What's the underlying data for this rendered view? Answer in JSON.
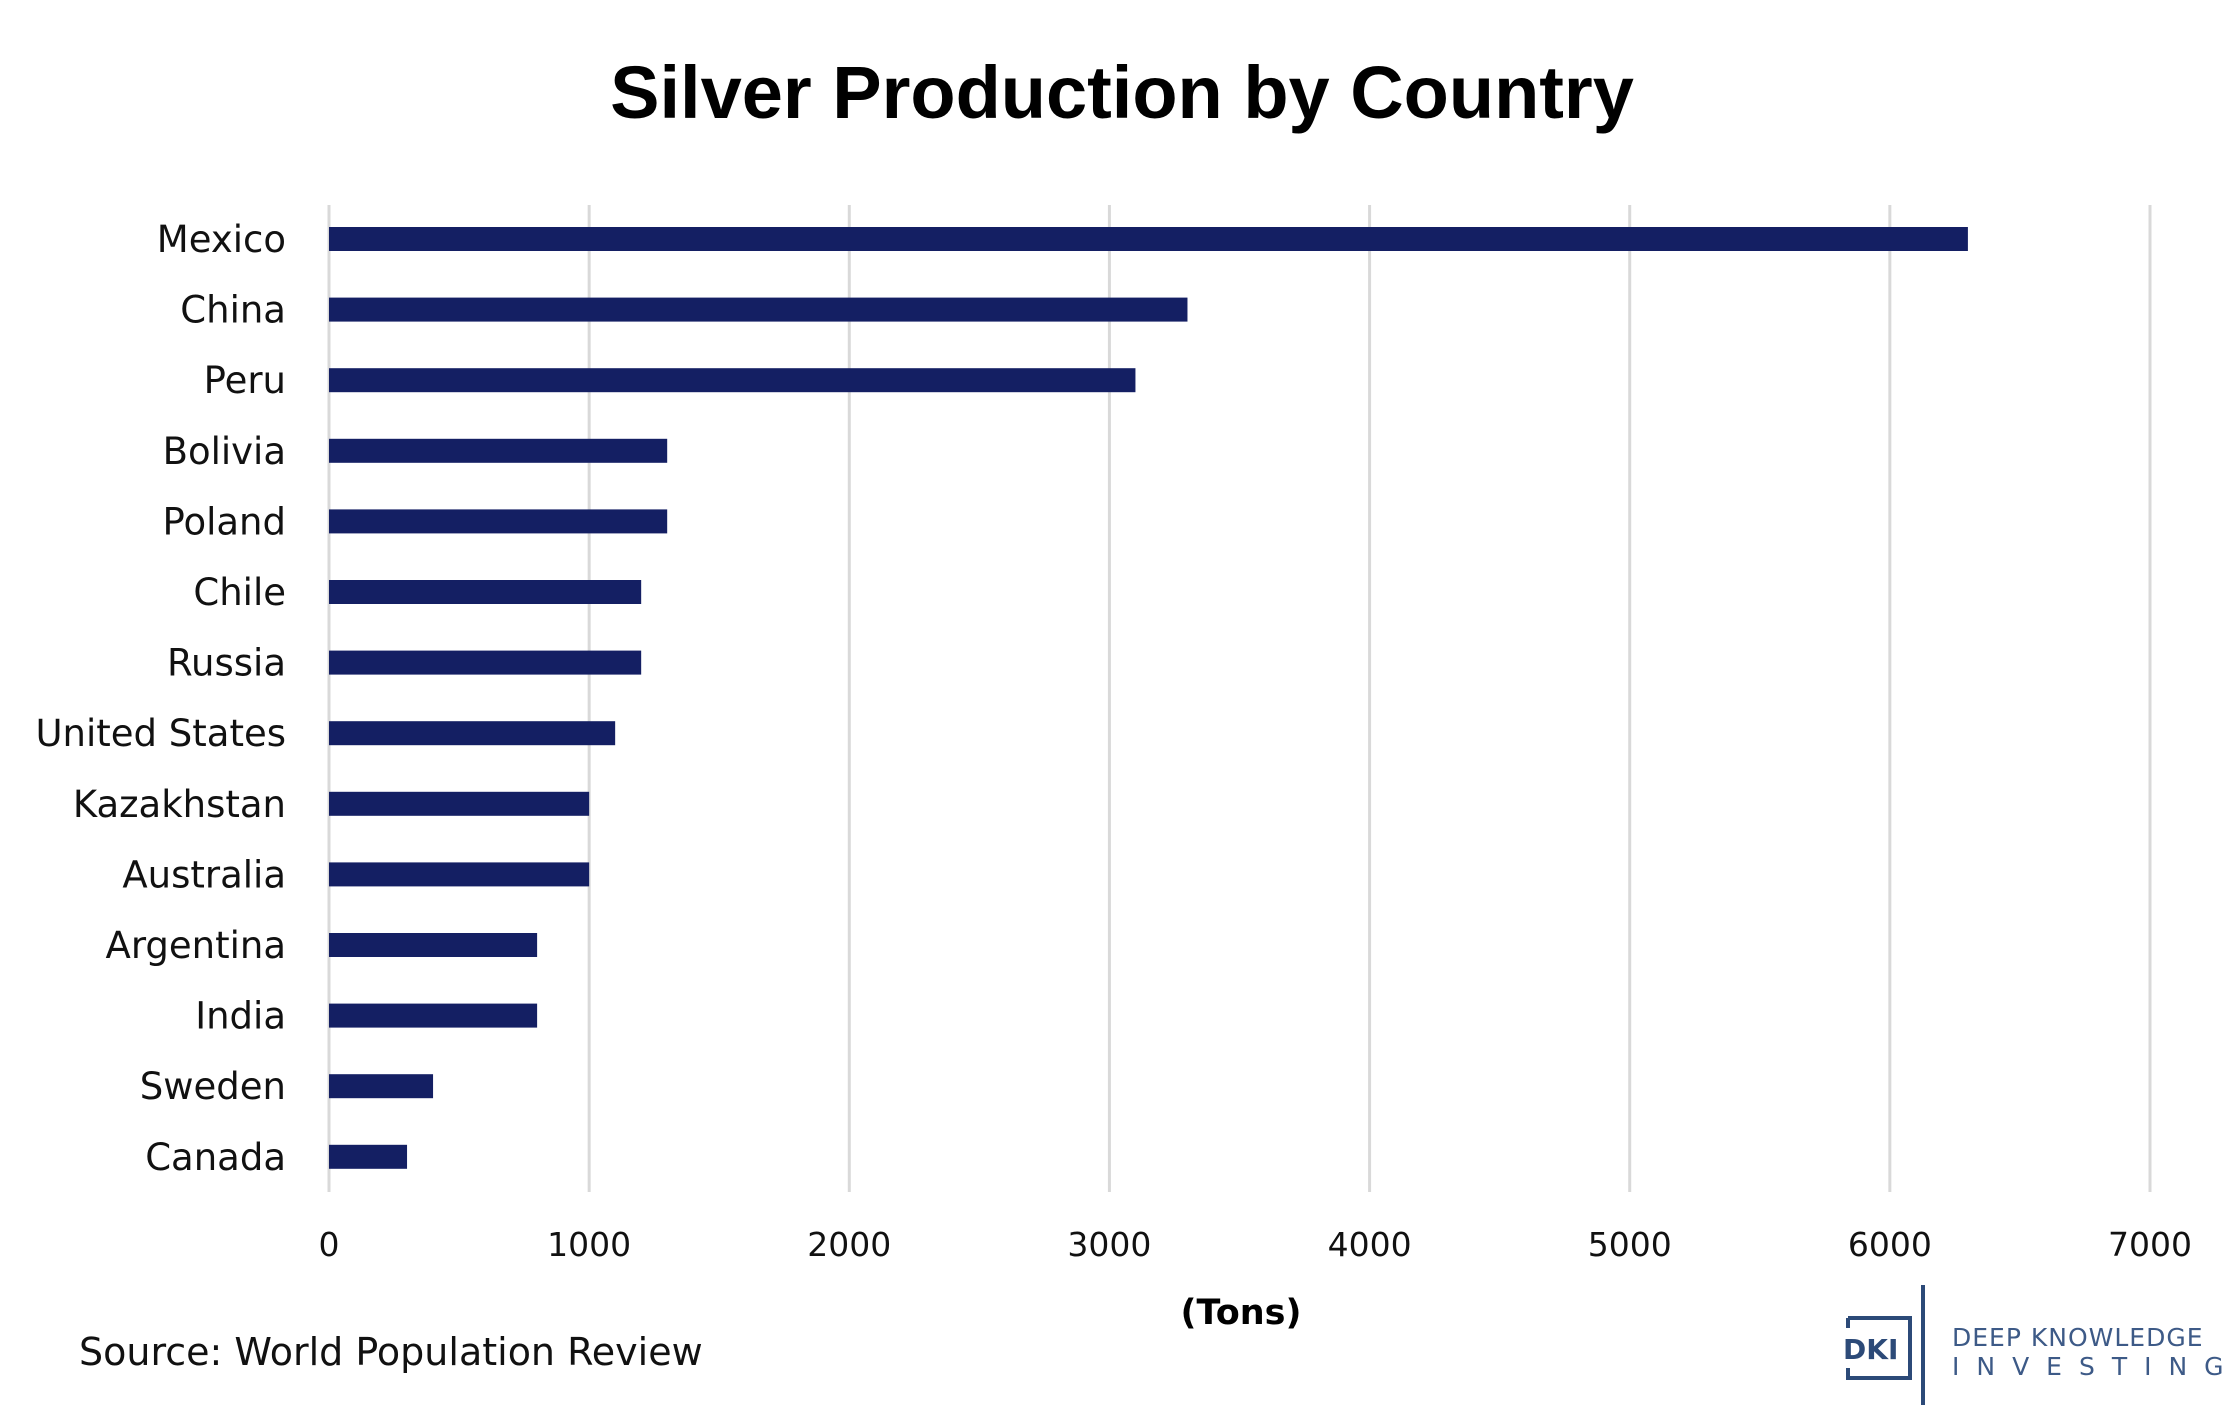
{
  "chart_data": {
    "type": "bar",
    "orientation": "horizontal",
    "title": "Silver Production by Country",
    "xlabel": "(Tons)",
    "ylabel": "",
    "categories": [
      "Mexico",
      "China",
      "Peru",
      "Bolivia",
      "Poland",
      "Chile",
      "Russia",
      "United States",
      "Kazakhstan",
      "Australia",
      "Argentina",
      "India",
      "Sweden",
      "Canada"
    ],
    "values": [
      6300,
      3300,
      3100,
      1300,
      1300,
      1200,
      1200,
      1100,
      1000,
      1000,
      800,
      800,
      400,
      300
    ],
    "xlim": [
      0,
      7000
    ],
    "xticks": [
      "0",
      "1000",
      "2000",
      "3000",
      "4000",
      "5000",
      "6000",
      "7000"
    ],
    "grid": "vertical",
    "bar_color": "#141f63",
    "grid_color": "#d9d9d9"
  },
  "source": "Source: World Population Review",
  "logo": {
    "mark": "DKI",
    "line1": "DEEP KNOWLEDGE",
    "line2": "INVESTING",
    "color": "#3d5a87"
  }
}
